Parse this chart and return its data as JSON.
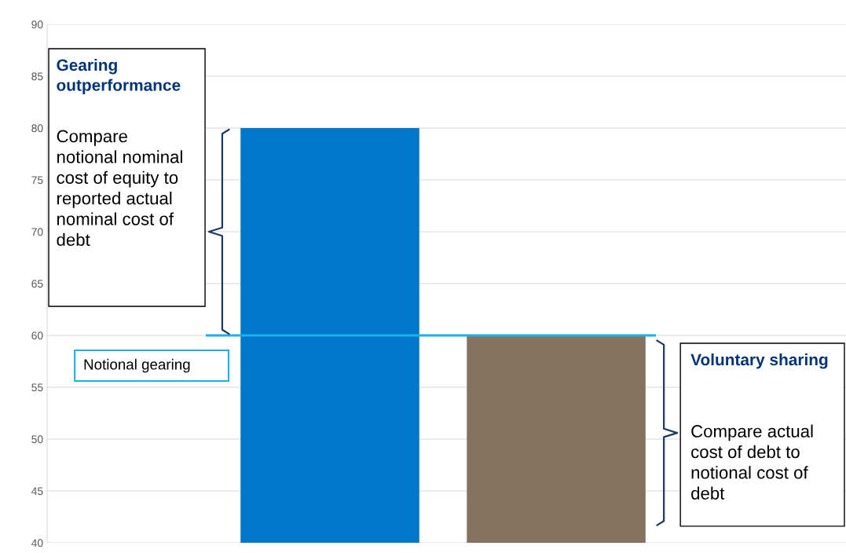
{
  "chart_data": {
    "type": "bar",
    "categories": [
      null,
      null
    ],
    "colors": [
      "#0077c8",
      "#85735f"
    ],
    "values": [
      80,
      60
    ],
    "ylim": [
      40,
      90
    ],
    "yticks": [
      40,
      45,
      50,
      55,
      60,
      65,
      70,
      75,
      80,
      85,
      90
    ],
    "grid": "y",
    "ref_lines": [
      {
        "axis": "y",
        "value": 60,
        "label": "Notional gearing",
        "color": "#1ab2e8"
      }
    ],
    "annotations": [
      "Gearing outperformance",
      "Compare notional nominal cost of equity to reported actual nominal cost of debt",
      "Voluntary sharing",
      "Compare actual cost of debt to notional cost of debt"
    ]
  }
}
